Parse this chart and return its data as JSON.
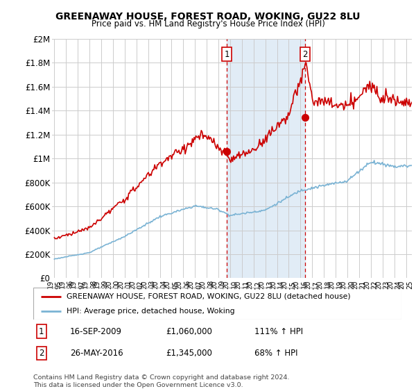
{
  "title": "GREENAWAY HOUSE, FOREST ROAD, WOKING, GU22 8LU",
  "subtitle": "Price paid vs. HM Land Registry's House Price Index (HPI)",
  "legend_line1": "GREENAWAY HOUSE, FOREST ROAD, WOKING, GU22 8LU (detached house)",
  "legend_line2": "HPI: Average price, detached house, Woking",
  "footnote": "Contains HM Land Registry data © Crown copyright and database right 2024.\nThis data is licensed under the Open Government Licence v3.0.",
  "sale1_label": "1",
  "sale1_date": "16-SEP-2009",
  "sale1_price": "£1,060,000",
  "sale1_hpi": "111% ↑ HPI",
  "sale2_label": "2",
  "sale2_date": "26-MAY-2016",
  "sale2_price": "£1,345,000",
  "sale2_hpi": "68% ↑ HPI",
  "sale1_x": 2009.71,
  "sale1_y": 1060000,
  "sale2_x": 2016.4,
  "sale2_y": 1345000,
  "vline1_x": 2009.71,
  "vline2_x": 2016.4,
  "ylim_min": 0,
  "ylim_max": 2000000,
  "xlim_min": 1994.8,
  "xlim_max": 2025.5,
  "hpi_color": "#7ab3d4",
  "price_color": "#cc0000",
  "vline_color": "#cc0000",
  "grid_color": "#cccccc",
  "background_color": "#ffffff",
  "shaded_color": "#dce9f5",
  "yticks": [
    0,
    200000,
    400000,
    600000,
    800000,
    1000000,
    1200000,
    1400000,
    1600000,
    1800000,
    2000000
  ],
  "ytick_labels": [
    "£0",
    "£200K",
    "£400K",
    "£600K",
    "£800K",
    "£1M",
    "£1.2M",
    "£1.4M",
    "£1.6M",
    "£1.8M",
    "£2M"
  ]
}
